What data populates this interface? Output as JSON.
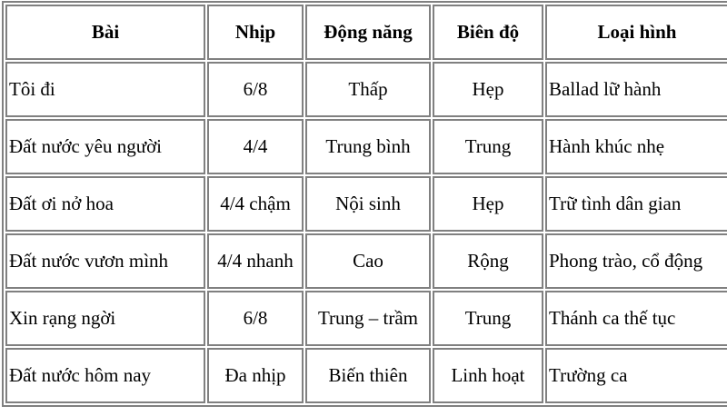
{
  "table": {
    "headers": [
      "Bài",
      "Nhịp",
      "Động năng",
      "Biên độ",
      "Loại hình"
    ],
    "rows": [
      [
        "Tôi đi",
        "6/8",
        "Thấp",
        "Hẹp",
        "Ballad lữ hành"
      ],
      [
        "Đất nước yêu người",
        "4/4",
        "Trung bình",
        "Trung",
        "Hành khúc nhẹ"
      ],
      [
        "Đất ơi nở hoa",
        "4/4 chậm",
        "Nội sinh",
        "Hẹp",
        "Trữ tình dân gian"
      ],
      [
        "Đất nước vươn mình",
        "4/4 nhanh",
        "Cao",
        "Rộng",
        "Phong trào, cổ động"
      ],
      [
        "Xin rạng ngời",
        "6/8",
        "Trung – trầm",
        "Trung",
        "Thánh ca thế tục"
      ],
      [
        "Đất nước hôm nay",
        "Đa nhịp",
        "Biến thiên",
        "Linh hoạt",
        "Trường ca"
      ]
    ]
  }
}
